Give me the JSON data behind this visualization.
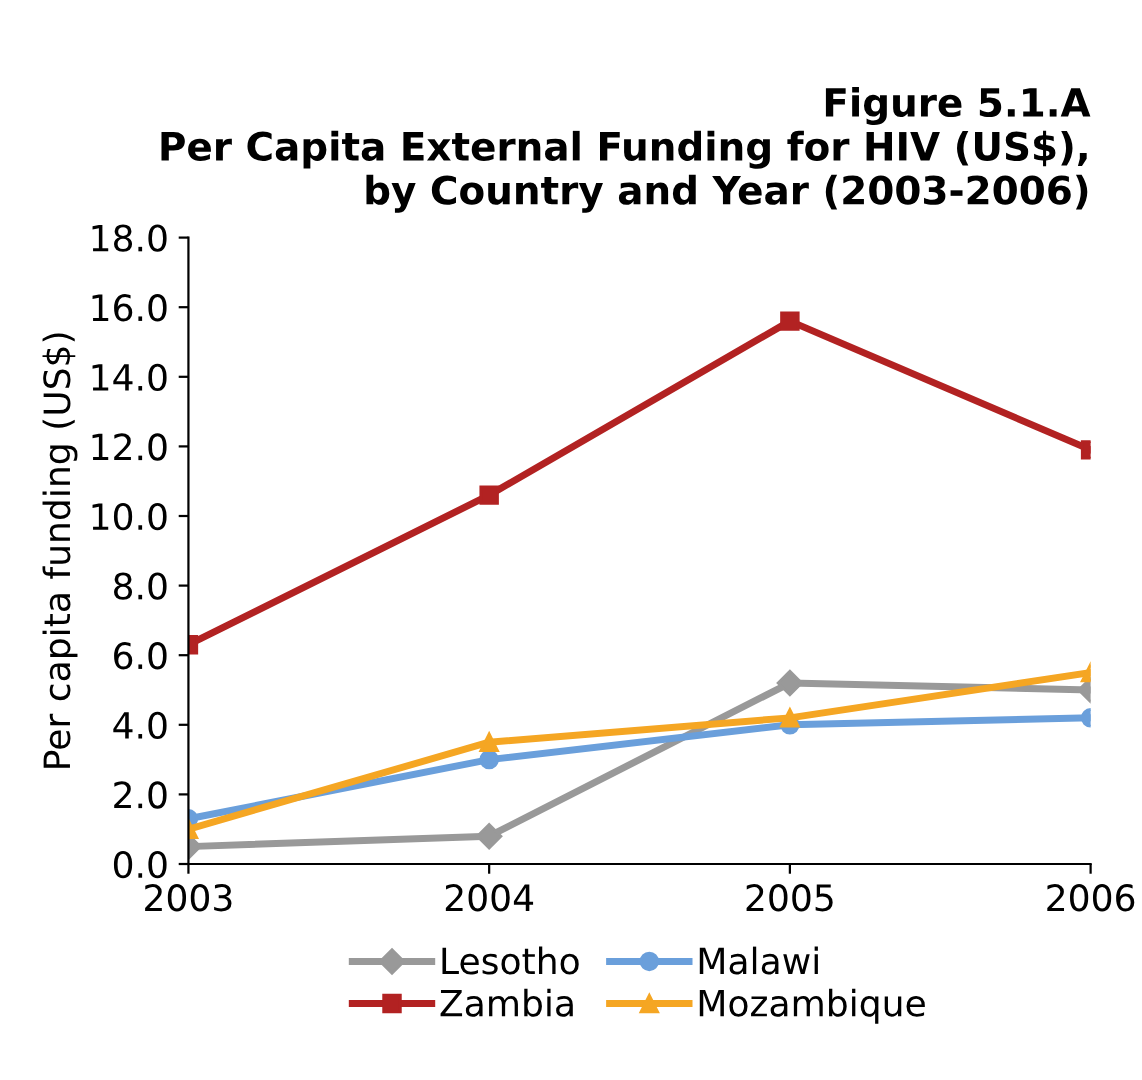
{
  "chart_data": {
    "type": "line",
    "title": "Figure 5.1.A\nPer Capita External Funding for HIV (US$),\nby Country and Year (2003-2006)",
    "ylabel": "Per capita funding (US$)",
    "categories": [
      "2003",
      "2004",
      "2005",
      "2006"
    ],
    "series": [
      {
        "name": "Lesotho",
        "color": "#999999",
        "marker": "diamond",
        "values": [
          0.5,
          0.8,
          5.2,
          5.0
        ]
      },
      {
        "name": "Zambia",
        "color": "#b22222",
        "marker": "square",
        "values": [
          6.3,
          10.6,
          15.6,
          11.9
        ]
      },
      {
        "name": "Malawi",
        "color": "#6a9fdb",
        "marker": "circle",
        "values": [
          1.3,
          3.0,
          4.0,
          4.2
        ]
      },
      {
        "name": "Mozambique",
        "color": "#f5a623",
        "marker": "triangle",
        "values": [
          1.0,
          3.5,
          4.2,
          5.5
        ]
      }
    ],
    "ylim": [
      0,
      18
    ],
    "yticks": [
      {
        "value": 0,
        "label": "0.0"
      },
      {
        "value": 2,
        "label": "2.0"
      },
      {
        "value": 4,
        "label": "4.0"
      },
      {
        "value": 6,
        "label": "6.0"
      },
      {
        "value": 8,
        "label": "8.0"
      },
      {
        "value": 10,
        "label": "10.0"
      },
      {
        "value": 12,
        "label": "12.0"
      },
      {
        "value": 14,
        "label": "14.0"
      },
      {
        "value": 16,
        "label": "16.0"
      },
      {
        "value": 18,
        "label": "18.0"
      }
    ],
    "grid": false,
    "legend": "bottom",
    "line_style": "solid"
  }
}
